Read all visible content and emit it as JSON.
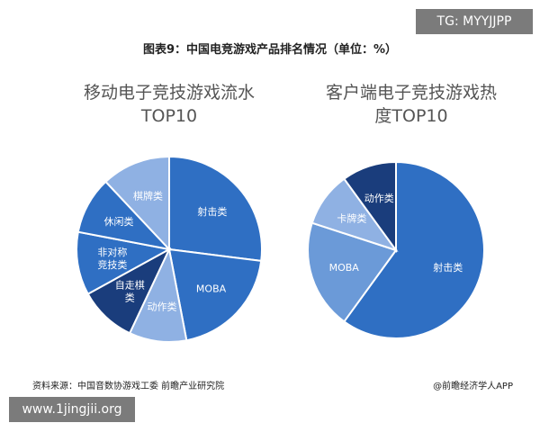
{
  "watermarks": {
    "top_right": "TG: MYYJJPP",
    "bottom_left": "www.1jingjii.org"
  },
  "figure_title": "图表9：中国电竞游戏产品排名情况（单位：%）",
  "footer": {
    "source": "资料来源：中国音数协游戏工委 前瞻产业研究院",
    "brand": "@前瞻经济学人APP"
  },
  "colors": {
    "dark": "#1a3d7c",
    "medium": "#2f6fc3",
    "light": "#6b9ad8",
    "lighter": "#8fb1e3",
    "stroke": "#ffffff"
  },
  "chart_data": [
    {
      "type": "pie",
      "title_lines": [
        "移动电子竞技游戏流水",
        "TOP10"
      ],
      "slices": [
        {
          "label": "射击类",
          "value": 27,
          "color": "#2f6fc3"
        },
        {
          "label": "MOBA",
          "value": 20,
          "color": "#2f6fc3"
        },
        {
          "label": "动作类",
          "value": 10,
          "color": "#8fb1e3"
        },
        {
          "label": "自走棋类",
          "value": 10,
          "color": "#1a3d7c"
        },
        {
          "label": "非对称竞技类",
          "value": 11,
          "color": "#2f6fc3"
        },
        {
          "label": "休闲类",
          "value": 10,
          "color": "#2f6fc3"
        },
        {
          "label": "棋牌类",
          "value": 12,
          "color": "#8fb1e3"
        }
      ]
    },
    {
      "type": "pie",
      "title_lines": [
        "客户端电子竞技游戏热",
        "度TOP10"
      ],
      "slices": [
        {
          "label": "射击类",
          "value": 60,
          "color": "#2f6fc3"
        },
        {
          "label": "MOBA",
          "value": 20,
          "color": "#6b9ad8"
        },
        {
          "label": "卡牌类",
          "value": 10,
          "color": "#8fb1e3"
        },
        {
          "label": "动作类",
          "value": 10,
          "color": "#1a3d7c"
        }
      ]
    }
  ]
}
